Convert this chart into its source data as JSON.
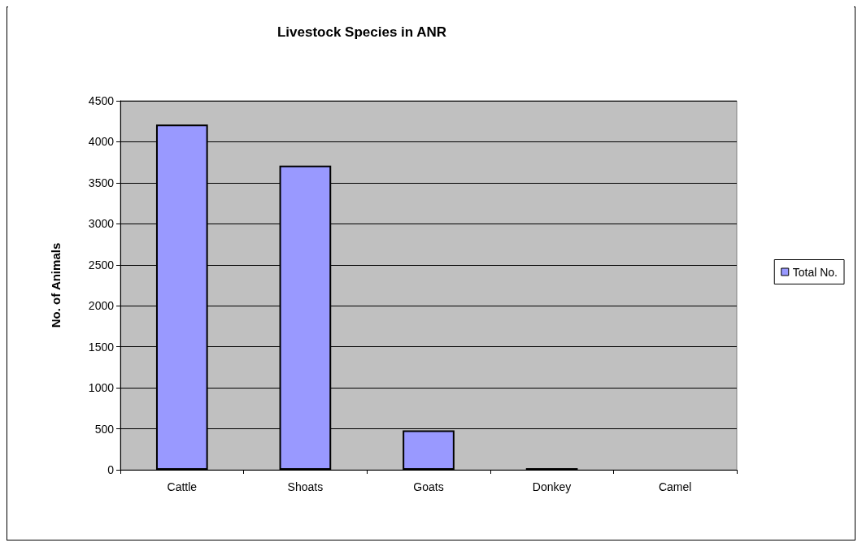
{
  "chart_data": {
    "type": "bar",
    "title": "Livestock Species in ANR",
    "ylabel": "No. of Animals",
    "categories": [
      "Cattle",
      "Shoats",
      "Goats",
      "Donkey",
      "Camel"
    ],
    "series": [
      {
        "name": "Total No.",
        "color": "#9999ff",
        "values": [
          4210,
          3710,
          480,
          20,
          null
        ]
      }
    ],
    "ylim": [
      0,
      4500
    ],
    "yticks": [
      0,
      500,
      1000,
      1500,
      2000,
      2500,
      3000,
      3500,
      4000,
      4500
    ],
    "grid": "y",
    "legend": "right"
  }
}
